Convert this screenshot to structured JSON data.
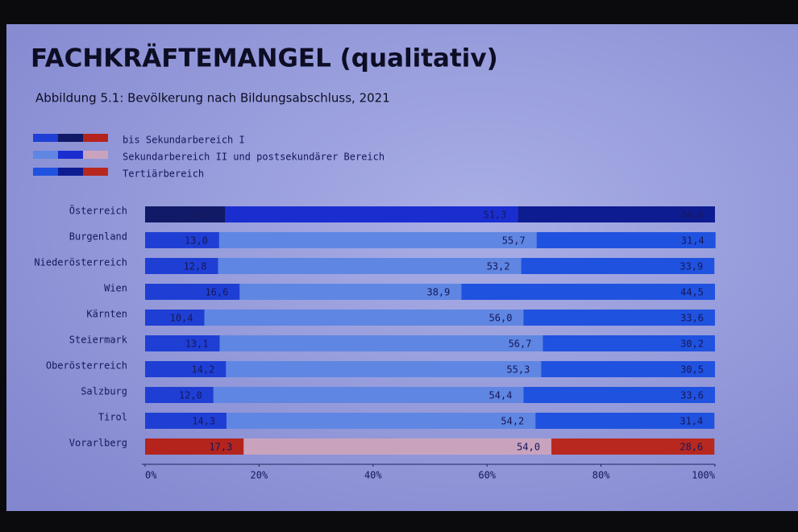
{
  "chart_data": {
    "type": "stacked_bar_horizontal",
    "title": "FACHKRÄFTEMANGEL (qualitativ)",
    "subtitle": "Abbildung 5.1: Bevölkerung nach Bildungsabschluss, 2021",
    "categories": [
      "Österreich",
      "Burgenland",
      "Niederösterreich",
      "Wien",
      "Kärnten",
      "Steiermark",
      "Oberösterreich",
      "Salzburg",
      "Tirol",
      "Vorarlberg"
    ],
    "series": [
      {
        "name": "bis Sekundarbereich I",
        "colors": [
          "#101a66",
          "#1f3fd4",
          "#1f3fd4",
          "#1f3fd4",
          "#1f3fd4",
          "#1f3fd4",
          "#1f3fd4",
          "#1f3fd4",
          "#1f3fd4",
          "#b4241c"
        ],
        "values": [
          14.1,
          13.0,
          12.8,
          16.6,
          10.4,
          13.1,
          14.2,
          12.0,
          14.3,
          17.3
        ],
        "value_labels": [
          "14,1",
          "13,0",
          "12,8",
          "16,6",
          "10,4",
          "13,1",
          "14,2",
          "12,0",
          "14,3",
          "17,3"
        ]
      },
      {
        "name": "Sekundarbereich II und postsekundärer Bereich",
        "colors": [
          "#1a2ed0",
          "#5f86e2",
          "#5f86e2",
          "#5f86e2",
          "#5f86e2",
          "#5f86e2",
          "#5f86e2",
          "#5f86e2",
          "#5f86e2",
          "#c9a3be"
        ],
        "values": [
          51.3,
          55.7,
          53.2,
          38.9,
          56.0,
          56.7,
          55.3,
          54.4,
          54.2,
          54.0
        ],
        "value_labels": [
          "51,3",
          "55,7",
          "53,2",
          "38,9",
          "56,0",
          "56,7",
          "55,3",
          "54,4",
          "54,2",
          "54,0"
        ]
      },
      {
        "name": "Tertiärbereich",
        "colors": [
          "#0e1c92",
          "#2052e0",
          "#2052e0",
          "#2052e0",
          "#2052e0",
          "#2052e0",
          "#2052e0",
          "#2052e0",
          "#2052e0",
          "#b8281e"
        ],
        "values": [
          34.6,
          31.4,
          33.9,
          44.5,
          33.6,
          30.2,
          30.5,
          33.6,
          31.4,
          28.6
        ],
        "value_labels": [
          "34,6",
          "31,4",
          "33,9",
          "44,5",
          "33,6",
          "30,2",
          "30,5",
          "33,6",
          "31,4",
          "28,6"
        ]
      }
    ],
    "xlim": [
      0,
      100
    ],
    "xticks": [
      {
        "value": 0,
        "label": "0%"
      },
      {
        "value": 20,
        "label": "20%"
      },
      {
        "value": 40,
        "label": "40%"
      },
      {
        "value": 60,
        "label": "60%"
      },
      {
        "value": 80,
        "label": "80%"
      },
      {
        "value": 100,
        "label": "100%"
      }
    ]
  }
}
